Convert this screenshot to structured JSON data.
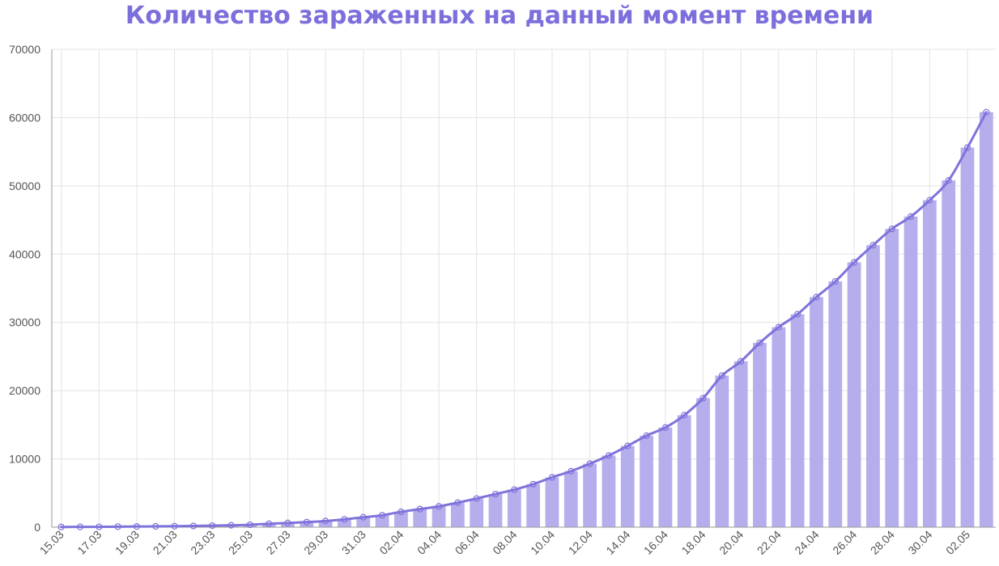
{
  "chart_data": {
    "type": "bar",
    "title": "Количество зараженных на данный момент времени",
    "xlabel": "",
    "ylabel": "",
    "ylim": [
      0,
      70000
    ],
    "yticks": [
      0,
      10000,
      20000,
      30000,
      40000,
      50000,
      60000,
      70000
    ],
    "grid": true,
    "legend": "none",
    "colors": {
      "bar": "#b4aeec",
      "line": "#7f73db",
      "title": "#7b6fdc"
    },
    "categories": [
      "15.03",
      "16.03",
      "17.03",
      "18.03",
      "19.03",
      "20.03",
      "21.03",
      "22.03",
      "23.03",
      "24.03",
      "25.03",
      "26.03",
      "27.03",
      "28.03",
      "29.03",
      "30.03",
      "31.03",
      "01.04",
      "02.04",
      "03.04",
      "04.04",
      "05.04",
      "06.04",
      "07.04",
      "08.04",
      "09.04",
      "10.04",
      "11.04",
      "12.04",
      "13.04",
      "14.04",
      "15.04",
      "16.04",
      "17.04",
      "18.04",
      "19.04",
      "20.04",
      "21.04",
      "22.04",
      "23.04",
      "24.04",
      "25.04",
      "26.04",
      "27.04",
      "28.04",
      "29.04",
      "30.04",
      "01.05",
      "02.05",
      "03.05"
    ],
    "tick_labels": [
      "15.03",
      "17.03",
      "19.03",
      "21.03",
      "23.03",
      "25.03",
      "27.03",
      "29.03",
      "31.03",
      "02.04",
      "04.04",
      "06.04",
      "08.04",
      "10.04",
      "12.04",
      "14.04",
      "16.04",
      "18.04",
      "20.04",
      "22.04",
      "24.04",
      "26.04",
      "28.04",
      "30.04",
      "02.05"
    ],
    "series": [
      {
        "type": "bar",
        "values": [
          30,
          40,
          50,
          80,
          100,
          120,
          150,
          180,
          230,
          280,
          360,
          500,
          620,
          750,
          900,
          1150,
          1450,
          1750,
          2250,
          2650,
          3050,
          3600,
          4200,
          4850,
          5500,
          6300,
          7300,
          8200,
          9300,
          10500,
          11900,
          13400,
          14600,
          16400,
          18900,
          22200,
          24300,
          27000,
          29300,
          31200,
          33700,
          36000,
          38800,
          41300,
          43700,
          45500,
          47900,
          50800,
          55600,
          60800
        ]
      },
      {
        "type": "line",
        "values": [
          30,
          40,
          50,
          80,
          100,
          120,
          150,
          180,
          230,
          280,
          360,
          500,
          620,
          750,
          900,
          1150,
          1450,
          1750,
          2250,
          2650,
          3050,
          3600,
          4200,
          4850,
          5500,
          6300,
          7300,
          8200,
          9300,
          10500,
          11900,
          13400,
          14600,
          16400,
          18900,
          22200,
          24300,
          27000,
          29300,
          31200,
          33700,
          36000,
          38800,
          41300,
          43700,
          45500,
          47900,
          50800,
          55600,
          60800
        ]
      }
    ]
  }
}
